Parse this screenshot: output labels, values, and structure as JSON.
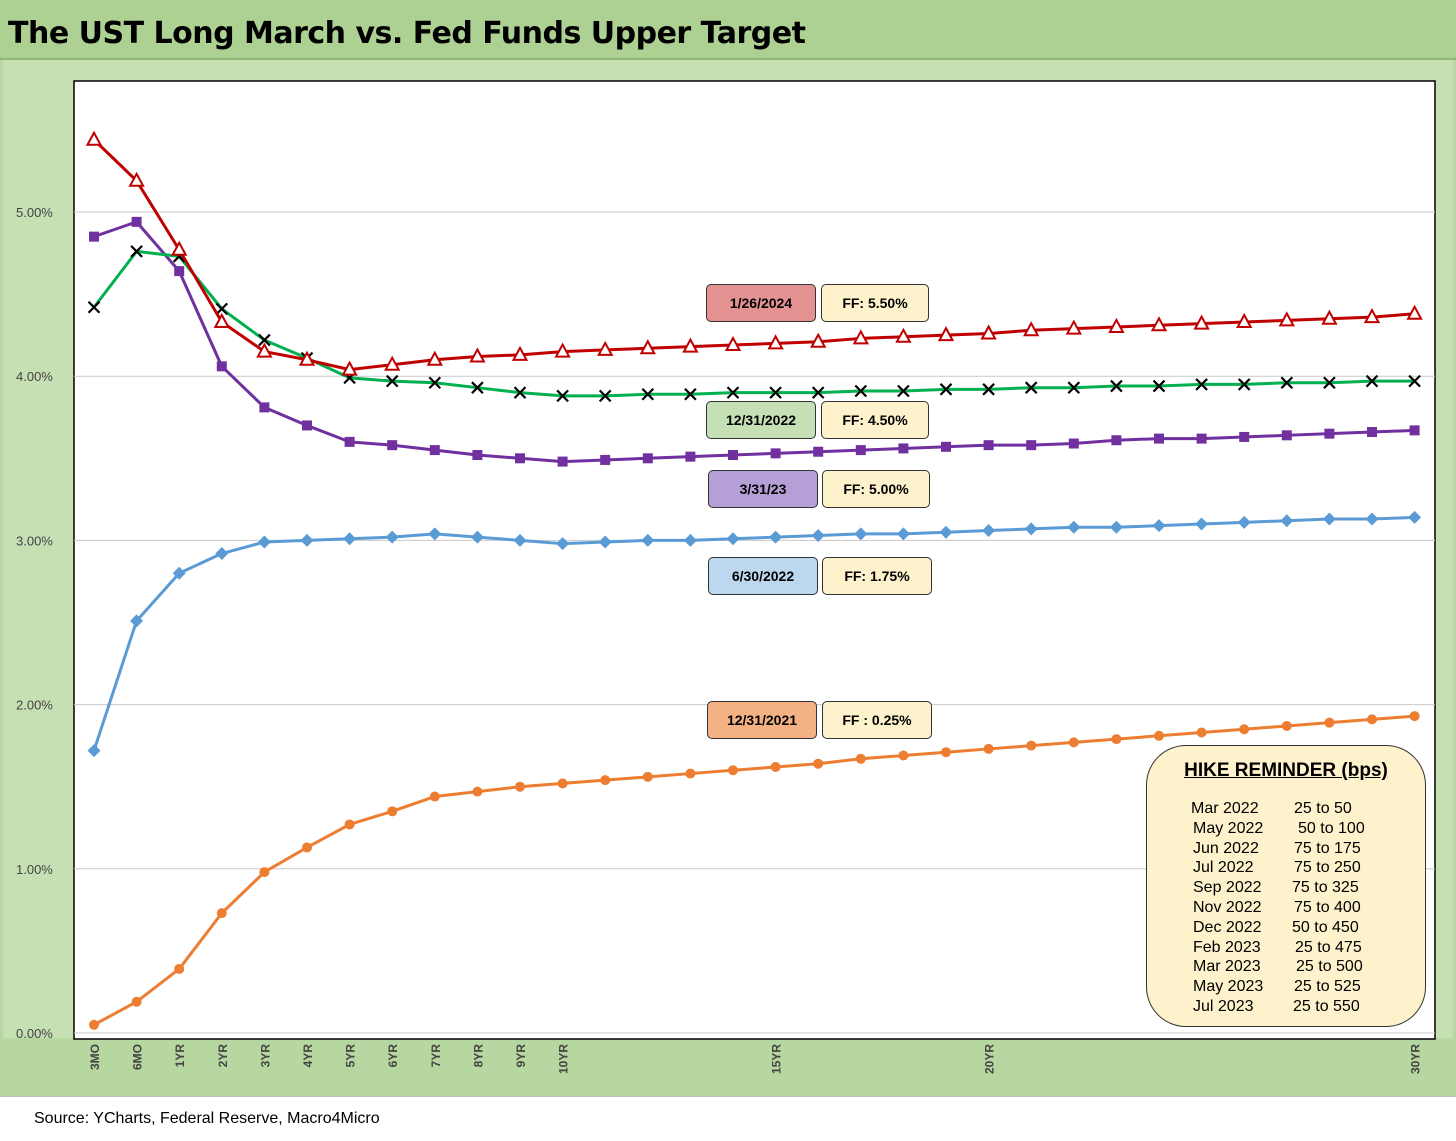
{
  "title": "The UST Long March vs. Fed Funds Upper Target",
  "source": "Source:  YCharts,  Federal Reserve,  Macro4Micro",
  "colors": {
    "series_2024": "#c00000",
    "series_2022_dec": "#00b050",
    "series_2023_mar": "#7030a0",
    "series_2022_jun": "#5b9bd5",
    "series_2021": "#ed7d31"
  },
  "chart_data": {
    "type": "line",
    "title": "The UST Long March vs. Fed Funds Upper Target",
    "xlabel": "",
    "ylabel": "",
    "ylim": [
      0,
      5.5
    ],
    "y_ticks": [
      "0.00%",
      "1.00%",
      "2.00%",
      "3.00%",
      "4.00%",
      "5.00%"
    ],
    "grid": true,
    "x_tick_labels": [
      "3MO",
      "6MO",
      "1YR",
      "2YR",
      "3YR",
      "4YR",
      "5YR",
      "6YR",
      "7YR",
      "8YR",
      "9YR",
      "10YR",
      "15YR",
      "20YR",
      "30YR"
    ],
    "x": [
      "3MO",
      "6MO",
      "1YR",
      "2YR",
      "3YR",
      "4YR",
      "5YR",
      "6YR",
      "7YR",
      "8YR",
      "9YR",
      "10YR",
      "11YR",
      "12YR",
      "13YR",
      "14YR",
      "15YR",
      "16YR",
      "17YR",
      "18YR",
      "19YR",
      "20YR",
      "21YR",
      "22YR",
      "23YR",
      "24YR",
      "25YR",
      "26YR",
      "27YR",
      "28YR",
      "29YR",
      "30YR"
    ],
    "series": [
      {
        "key": "s2024",
        "label": "1/26/2024",
        "ff": "FF: 5.50%",
        "marker": "triangle",
        "color": "#c00000",
        "label_fill": "#e39191",
        "values": [
          5.44,
          5.19,
          4.77,
          4.33,
          4.15,
          4.1,
          4.04,
          4.07,
          4.1,
          4.12,
          4.13,
          4.15,
          4.16,
          4.17,
          4.18,
          4.19,
          4.2,
          4.21,
          4.23,
          4.24,
          4.25,
          4.26,
          4.28,
          4.29,
          4.3,
          4.31,
          4.32,
          4.33,
          4.34,
          4.35,
          4.36,
          4.38
        ]
      },
      {
        "key": "s2022dec",
        "label": "12/31/2022",
        "ff": "FF: 4.50%",
        "marker": "x",
        "color": "#00b050",
        "label_fill": "#c5e0b4",
        "values": [
          4.42,
          4.76,
          4.73,
          4.41,
          4.22,
          4.11,
          3.99,
          3.97,
          3.96,
          3.93,
          3.9,
          3.88,
          3.88,
          3.89,
          3.89,
          3.9,
          3.9,
          3.9,
          3.91,
          3.91,
          3.92,
          3.92,
          3.93,
          3.93,
          3.94,
          3.94,
          3.95,
          3.95,
          3.96,
          3.96,
          3.97,
          3.97
        ]
      },
      {
        "key": "s2023mar",
        "label": "3/31/23",
        "ff": "FF: 5.00%",
        "marker": "square",
        "color": "#7030a0",
        "label_fill": "#b4a0d6",
        "values": [
          4.85,
          4.94,
          4.64,
          4.06,
          3.81,
          3.7,
          3.6,
          3.58,
          3.55,
          3.52,
          3.5,
          3.48,
          3.49,
          3.5,
          3.51,
          3.52,
          3.53,
          3.54,
          3.55,
          3.56,
          3.57,
          3.58,
          3.58,
          3.59,
          3.61,
          3.62,
          3.62,
          3.63,
          3.64,
          3.65,
          3.66,
          3.67
        ]
      },
      {
        "key": "s2022jun",
        "label": "6/30/2022",
        "ff": "FF: 1.75%",
        "marker": "diamond",
        "color": "#5b9bd5",
        "label_fill": "#bdd7ee",
        "values": [
          1.72,
          2.51,
          2.8,
          2.92,
          2.99,
          3.0,
          3.01,
          3.02,
          3.04,
          3.02,
          3.0,
          2.98,
          2.99,
          3.0,
          3.0,
          3.01,
          3.02,
          3.03,
          3.04,
          3.04,
          3.05,
          3.06,
          3.07,
          3.08,
          3.08,
          3.09,
          3.1,
          3.11,
          3.12,
          3.13,
          3.13,
          3.14
        ]
      },
      {
        "key": "s2021",
        "label": "12/31/2021",
        "ff": "FF : 0.25%",
        "marker": "circle",
        "color": "#ed7d31",
        "label_fill": "#f4b183",
        "values": [
          0.05,
          0.19,
          0.39,
          0.73,
          0.98,
          1.13,
          1.27,
          1.35,
          1.44,
          1.47,
          1.5,
          1.52,
          1.54,
          1.56,
          1.58,
          1.6,
          1.62,
          1.64,
          1.67,
          1.69,
          1.71,
          1.73,
          1.75,
          1.77,
          1.79,
          1.81,
          1.83,
          1.85,
          1.87,
          1.89,
          1.91,
          1.93
        ]
      }
    ],
    "annotations": [
      {
        "date": "1/26/2024",
        "ff": "FF: 5.50%"
      },
      {
        "date": "12/31/2022",
        "ff": "FF: 4.50%"
      },
      {
        "date": "3/31/23",
        "ff": "FF: 5.00%"
      },
      {
        "date": "6/30/2022",
        "ff": "FF: 1.75%"
      },
      {
        "date": "12/31/2021",
        "ff": "FF : 0.25%"
      }
    ]
  },
  "hike_reminder": {
    "title": "HIKE REMINDER (bps)",
    "rows": [
      {
        "date": "Mar 2022",
        "hike": "25 to 50"
      },
      {
        "date": "May 2022",
        "hike": "50 to 100"
      },
      {
        "date": "Jun 2022",
        "hike": "75 to 175"
      },
      {
        "date": "Jul 2022",
        "hike": "75 to 250"
      },
      {
        "date": "Sep 2022",
        "hike": "75 to 325"
      },
      {
        "date": "Nov 2022",
        "hike": "75 to 400"
      },
      {
        "date": "Dec 2022",
        "hike": "50 to 450"
      },
      {
        "date": "Feb 2023",
        "hike": "25 to 475"
      },
      {
        "date": "Mar 2023",
        "hike": "25 to 500"
      },
      {
        "date": "May 2023",
        "hike": "25 to 525"
      },
      {
        "date": "Jul 2023",
        "hike": "25 to 550"
      }
    ]
  }
}
